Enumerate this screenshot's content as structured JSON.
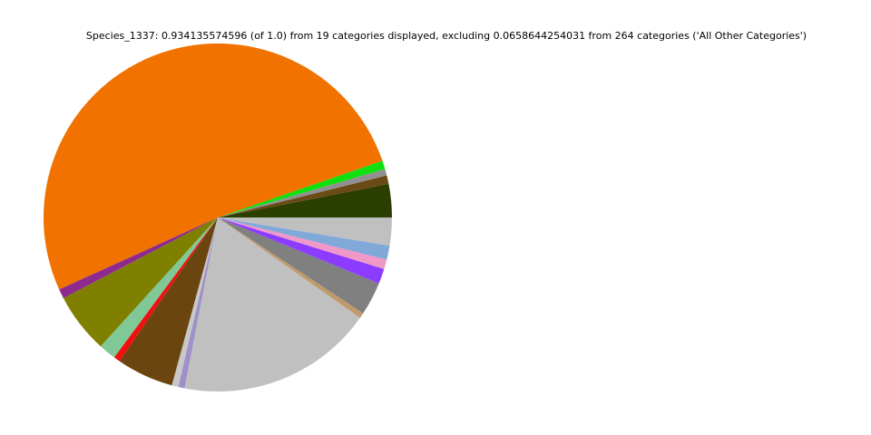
{
  "chart_data": {
    "type": "pie",
    "title": "Species_1337: 0.934135574596 (of 1.0) from 19 categories displayed, excluding 0.0658644254031 from 264 categories ('All Other Categories')",
    "values": [
      0.031,
      0.008,
      0.006,
      0.008,
      0.516,
      0.009,
      0.056,
      0.016,
      0.006,
      0.053,
      0.006,
      0.006,
      0.183,
      0.005,
      0.031,
      0.014,
      0.009,
      0.013,
      0.026
    ],
    "colors": [
      "#2a3f00",
      "#6b4a16",
      "#909090",
      "#10e010",
      "#f27200",
      "#8e2a8e",
      "#808000",
      "#80c896",
      "#f01010",
      "#6b4510",
      "#c8c8c8",
      "#a090c8",
      "#c0c0c0",
      "#c09a6a",
      "#808080",
      "#8c3cff",
      "#f098c8",
      "#80a8d8",
      "#c0c0c0"
    ]
  }
}
